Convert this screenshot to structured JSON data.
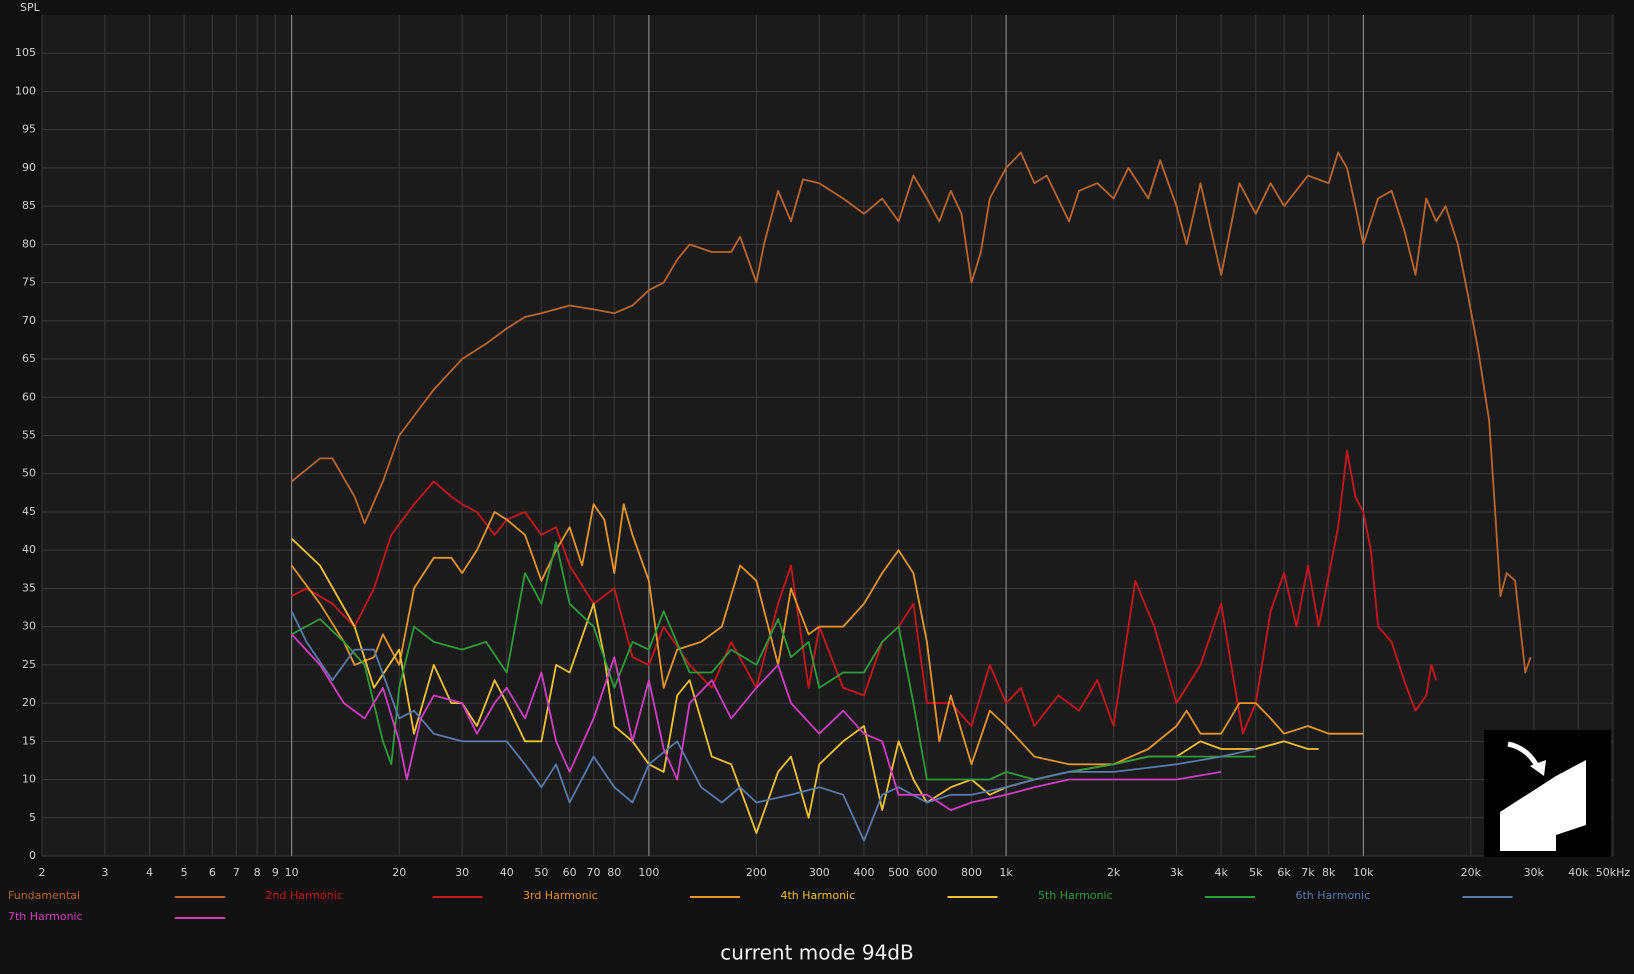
{
  "chart_data": {
    "type": "line",
    "y_label": "SPL",
    "caption": "current mode 94dB",
    "x_log": true,
    "grid": true,
    "xlim": [
      2,
      50000
    ],
    "ylim": [
      0,
      110
    ],
    "yticks": [
      0,
      5,
      10,
      15,
      20,
      25,
      30,
      35,
      40,
      45,
      50,
      55,
      60,
      65,
      70,
      75,
      80,
      85,
      90,
      95,
      100,
      105
    ],
    "xticks": [
      2,
      3,
      4,
      5,
      6,
      7,
      8,
      9,
      10,
      20,
      30,
      40,
      50,
      60,
      70,
      80,
      100,
      200,
      300,
      400,
      500,
      600,
      800,
      {
        "value": 1000,
        "label": "1k"
      },
      {
        "value": 2000,
        "label": "2k"
      },
      {
        "value": 3000,
        "label": "3k"
      },
      {
        "value": 4000,
        "label": "4k"
      },
      {
        "value": 5000,
        "label": "5k"
      },
      {
        "value": 6000,
        "label": "6k"
      },
      {
        "value": 7000,
        "label": "7k"
      },
      {
        "value": 8000,
        "label": "8k"
      },
      {
        "value": 10000,
        "label": "10k"
      },
      {
        "value": 20000,
        "label": "20k"
      },
      {
        "value": 30000,
        "label": "30k"
      },
      {
        "value": 40000,
        "label": "40k"
      },
      {
        "value": 50000,
        "label": "50kHz"
      }
    ],
    "series": [
      {
        "name": "Fundamental",
        "color": "#b8662c",
        "x": [
          10,
          12,
          13,
          15,
          16,
          18,
          20,
          25,
          30,
          35,
          40,
          45,
          50,
          60,
          70,
          80,
          90,
          100,
          110,
          120,
          130,
          150,
          170,
          180,
          200,
          210,
          230,
          250,
          270,
          300,
          350,
          400,
          450,
          500,
          550,
          600,
          650,
          700,
          750,
          800,
          850,
          900,
          1000,
          1100,
          1200,
          1300,
          1500,
          1600,
          1800,
          2000,
          2200,
          2500,
          2700,
          3000,
          3200,
          3500,
          4000,
          4500,
          5000,
          5500,
          6000,
          7000,
          8000,
          8500,
          9000,
          9500,
          10000,
          11000,
          12000,
          13000,
          14000,
          15000,
          16000,
          17000,
          18400,
          19700,
          21000,
          22500,
          23400,
          24200,
          25200,
          26600,
          28400,
          29400
        ],
        "values": [
          49,
          52,
          52,
          47,
          43.5,
          49,
          55,
          61,
          65,
          67,
          69,
          70.5,
          71,
          72,
          71.5,
          71,
          72,
          74,
          75,
          78,
          80,
          79,
          79,
          81,
          75,
          80,
          87,
          83,
          88.5,
          88,
          86,
          84,
          86,
          83,
          89,
          86,
          83,
          87,
          84,
          75,
          79,
          86,
          90,
          92,
          88,
          89,
          83,
          87,
          88,
          86,
          90,
          86,
          91,
          85,
          80,
          88,
          76,
          88,
          84,
          88,
          85,
          89,
          88,
          92,
          90,
          85,
          80,
          86,
          87,
          82,
          76,
          86,
          83,
          85,
          80,
          73,
          66,
          57,
          45,
          34,
          37,
          36,
          24,
          26
        ]
      },
      {
        "name": "2nd Harmonic",
        "color": "#c8161d",
        "x": [
          10,
          11,
          13,
          15,
          17,
          19,
          22,
          25,
          28,
          30,
          33,
          37,
          40,
          45,
          50,
          55,
          60,
          70,
          80,
          90,
          100,
          110,
          130,
          150,
          170,
          200,
          230,
          250,
          280,
          300,
          350,
          400,
          450,
          500,
          550,
          600,
          700,
          800,
          900,
          1000,
          1100,
          1200,
          1400,
          1600,
          1800,
          2000,
          2300,
          2600,
          3000,
          3500,
          4000,
          4300,
          4600,
          5000,
          5500,
          6000,
          6500,
          7000,
          7500,
          8500,
          9000,
          9500,
          10000,
          10500,
          11000,
          12000,
          13000,
          14000,
          15000,
          15500,
          16000
        ],
        "values": [
          34,
          35,
          33,
          30,
          35,
          42,
          46,
          49,
          47,
          46,
          45,
          42,
          44,
          45,
          42,
          43,
          38,
          33,
          35,
          26,
          25,
          30,
          25,
          22,
          28,
          22,
          33,
          38,
          22,
          30,
          22,
          21,
          28,
          30,
          33,
          20,
          20,
          17,
          25,
          20,
          22,
          17,
          21,
          19,
          23,
          17,
          36,
          30,
          20,
          25,
          33,
          24,
          16,
          20,
          32,
          37,
          30,
          38,
          30,
          43,
          53,
          47,
          45,
          40,
          30,
          28,
          23,
          19,
          21,
          25,
          23
        ]
      },
      {
        "name": "3rd Harmonic",
        "color": "#e8962a",
        "x": [
          10,
          12,
          14,
          15,
          17,
          18,
          20,
          22,
          25,
          28,
          30,
          33,
          37,
          40,
          45,
          50,
          55,
          60,
          65,
          70,
          75,
          80,
          85,
          90,
          100,
          110,
          120,
          140,
          160,
          180,
          200,
          230,
          250,
          280,
          300,
          350,
          400,
          450,
          500,
          550,
          600,
          650,
          700,
          800,
          900,
          1000,
          1200,
          1500,
          2000,
          2500,
          3000,
          3200,
          3500,
          4000,
          4500,
          5000,
          5500,
          6000,
          7000,
          8000,
          9000,
          10000
        ],
        "values": [
          38,
          33,
          28,
          25,
          26,
          29,
          25,
          35,
          39,
          39,
          37,
          40,
          45,
          44,
          42,
          36,
          40,
          43,
          38,
          46,
          44,
          37,
          46,
          42,
          36,
          22,
          27,
          28,
          30,
          38,
          36,
          25,
          35,
          29,
          30,
          30,
          33,
          37,
          40,
          37,
          28,
          15,
          21,
          12,
          19,
          17,
          13,
          12,
          12,
          14,
          17,
          19,
          16,
          16,
          20,
          20,
          18,
          16,
          17,
          16,
          16,
          16
        ]
      },
      {
        "name": "4th Harmonic",
        "color": "#f2c232",
        "x": [
          10,
          12,
          15,
          17,
          20,
          22,
          25,
          28,
          30,
          33,
          37,
          40,
          45,
          50,
          55,
          60,
          70,
          75,
          80,
          90,
          100,
          110,
          120,
          130,
          150,
          170,
          200,
          230,
          250,
          280,
          300,
          350,
          400,
          450,
          500,
          550,
          600,
          700,
          800,
          900,
          1000,
          1200,
          1500,
          2000,
          2500,
          3000,
          3500,
          4000,
          5000,
          6000,
          7000,
          7500
        ],
        "values": [
          41.5,
          38,
          30,
          22,
          27,
          16,
          25,
          20,
          20,
          17,
          23,
          20,
          15,
          15,
          25,
          24,
          33,
          26,
          17,
          15,
          12,
          11,
          21,
          23,
          13,
          12,
          3,
          11,
          13,
          5,
          12,
          15,
          17,
          6,
          15,
          10,
          7,
          9,
          10,
          8,
          9,
          10,
          11,
          12,
          13,
          13,
          15,
          14,
          14,
          15,
          14,
          14
        ]
      },
      {
        "name": "5th Harmonic",
        "color": "#2e9b3a",
        "x": [
          10,
          12,
          14,
          16,
          18,
          19,
          20,
          22,
          25,
          30,
          35,
          40,
          45,
          50,
          55,
          60,
          70,
          80,
          90,
          100,
          110,
          130,
          150,
          170,
          200,
          230,
          250,
          280,
          300,
          350,
          400,
          450,
          500,
          550,
          600,
          700,
          800,
          900,
          1000,
          1200,
          1500,
          2000,
          2500,
          3000,
          4000,
          5000
        ],
        "values": [
          29,
          31,
          28,
          25,
          15,
          12,
          22,
          30,
          28,
          27,
          28,
          24,
          37,
          33,
          41,
          33,
          30,
          22,
          28,
          27,
          32,
          24,
          24,
          27,
          25,
          31,
          26,
          28,
          22,
          24,
          24,
          28,
          30,
          20,
          10,
          10,
          10,
          10,
          11,
          10,
          11,
          12,
          13,
          13,
          13,
          13
        ]
      },
      {
        "name": "6th Harmonic",
        "color": "#5a7aa8",
        "x": [
          10,
          11,
          13,
          15,
          17,
          20,
          22,
          25,
          30,
          35,
          40,
          45,
          50,
          55,
          60,
          70,
          80,
          90,
          100,
          120,
          140,
          160,
          180,
          200,
          250,
          300,
          350,
          400,
          450,
          500,
          600,
          700,
          800,
          1000,
          1200,
          1500,
          2000,
          3000,
          4000,
          5000
        ],
        "values": [
          32,
          28,
          23,
          27,
          27,
          18,
          19,
          16,
          15,
          15,
          15,
          12,
          9,
          12,
          7,
          13,
          9,
          7,
          12,
          15,
          9,
          7,
          9,
          7,
          8,
          9,
          8,
          2,
          8,
          9,
          7,
          8,
          8,
          9,
          10,
          11,
          11,
          12,
          13,
          14
        ]
      },
      {
        "name": "7th Harmonic",
        "color": "#d040c0",
        "x": [
          10,
          12,
          14,
          16,
          18,
          20,
          21,
          23,
          25,
          30,
          33,
          37,
          40,
          45,
          50,
          55,
          60,
          70,
          80,
          90,
          100,
          110,
          120,
          130,
          150,
          170,
          200,
          230,
          250,
          300,
          350,
          400,
          450,
          500,
          600,
          700,
          800,
          1000,
          1200,
          1500,
          2000,
          3000,
          4000
        ],
        "values": [
          29,
          25,
          20,
          18,
          22,
          15,
          10,
          18,
          21,
          20,
          16,
          20,
          22,
          18,
          24,
          15,
          11,
          18,
          26,
          15,
          23,
          14,
          10,
          20,
          23,
          18,
          22,
          25,
          20,
          16,
          19,
          16,
          15,
          8,
          8,
          6,
          7,
          8,
          9,
          10,
          10,
          10,
          11
        ]
      }
    ]
  }
}
